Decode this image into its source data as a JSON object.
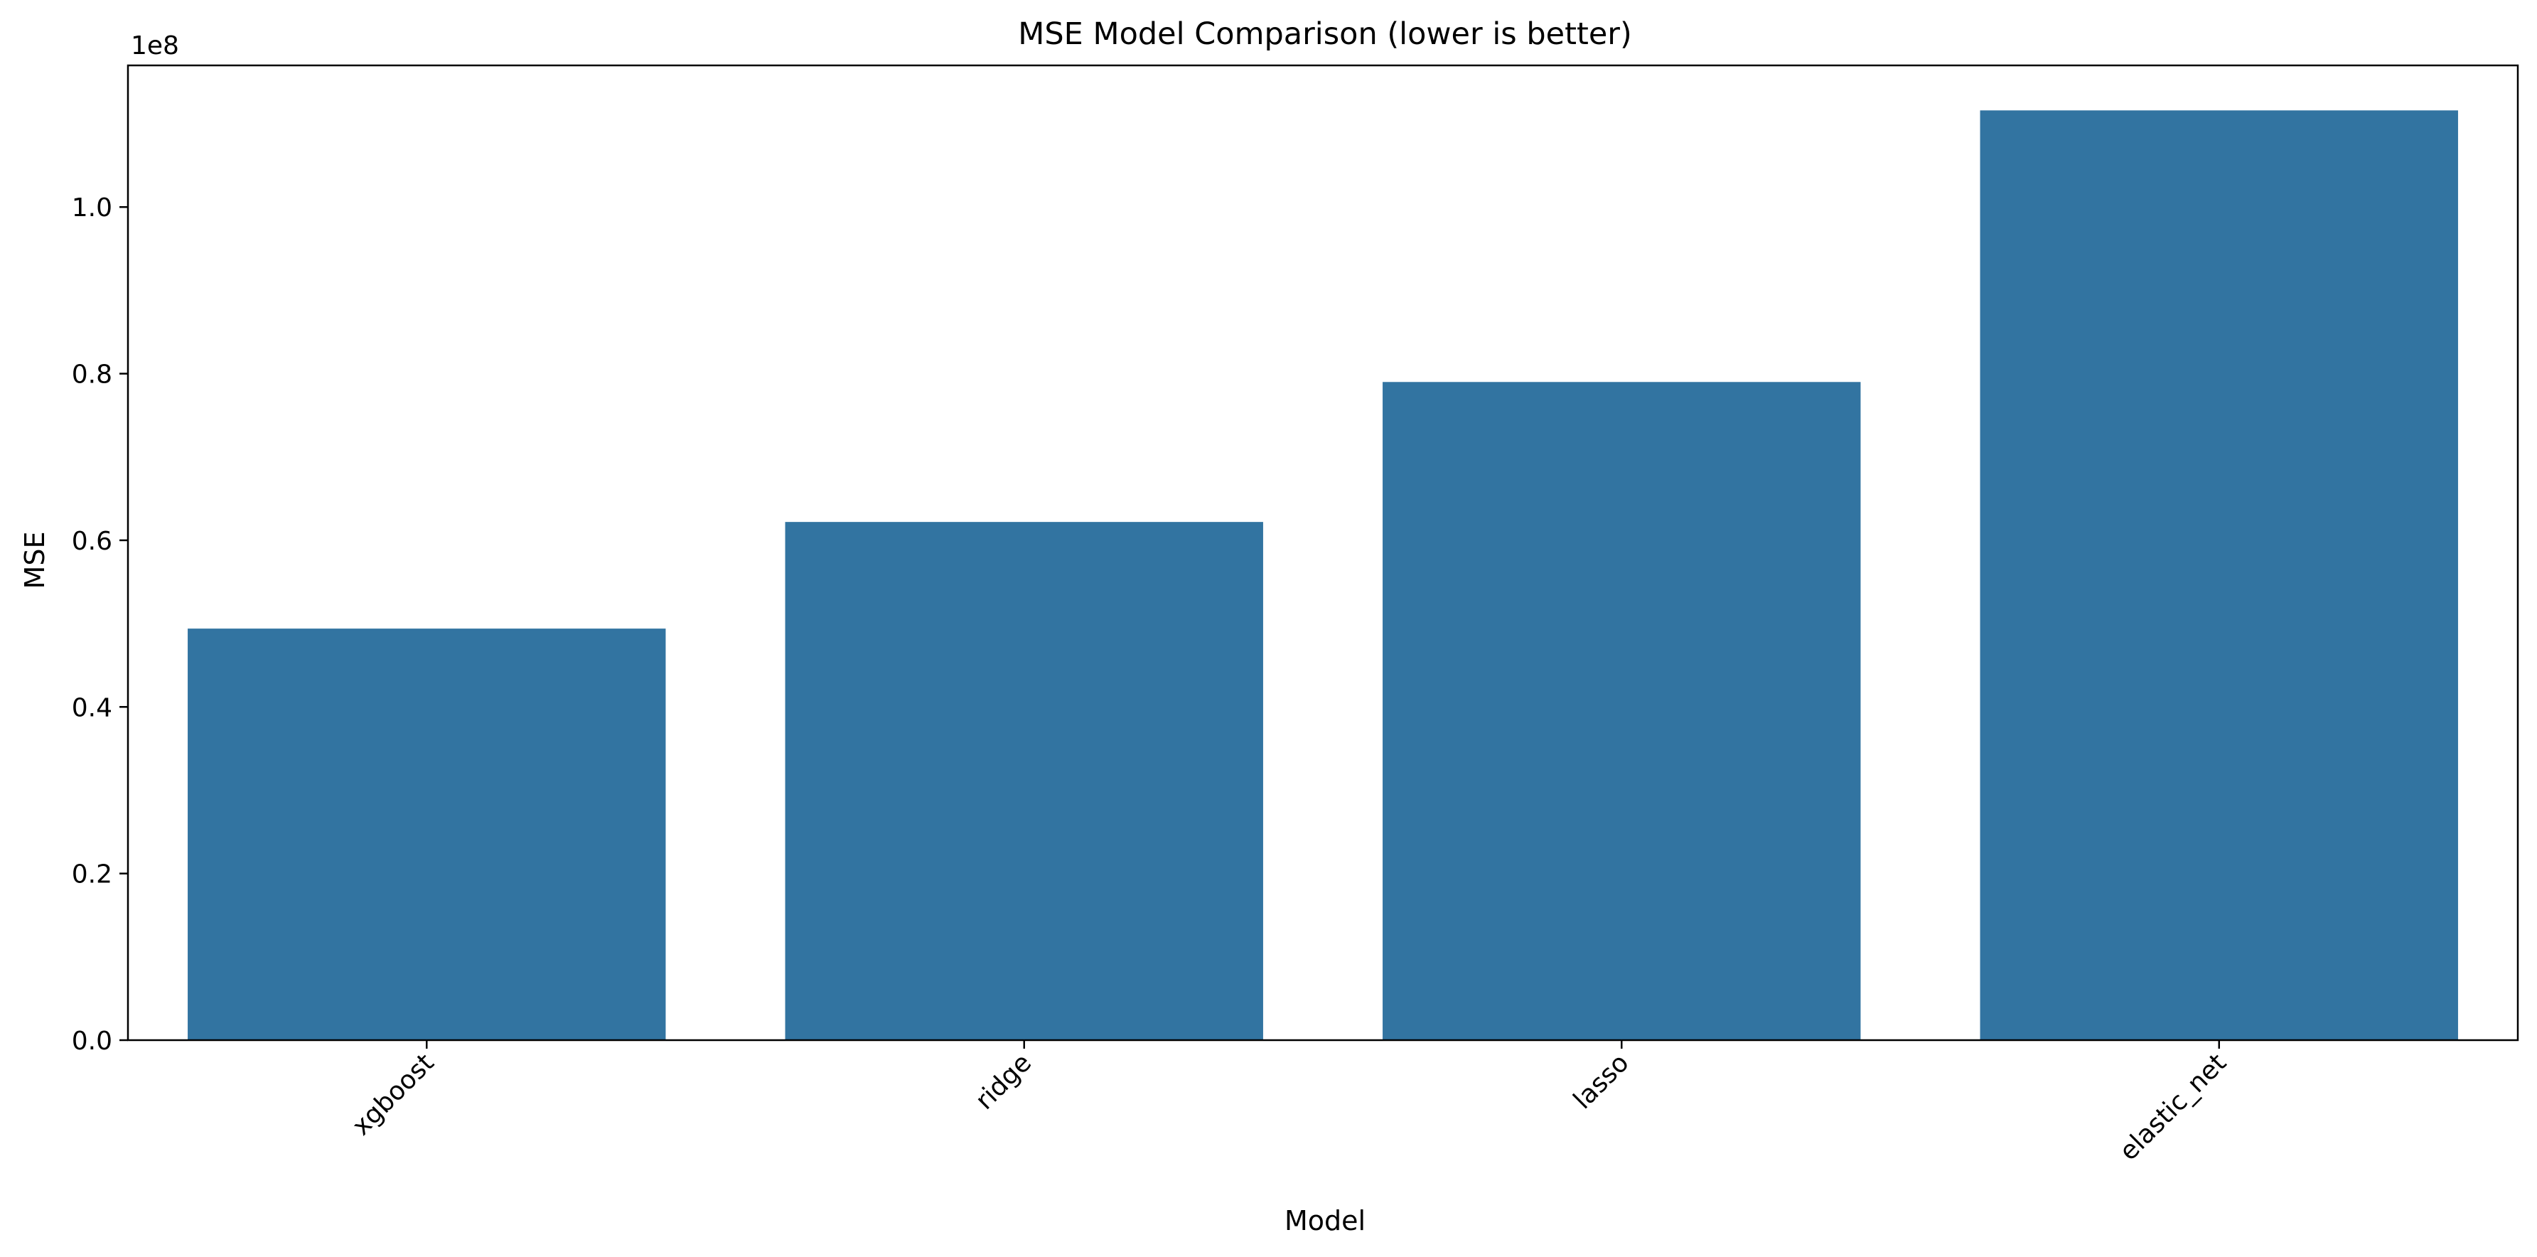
{
  "chart_data": {
    "type": "bar",
    "title": "MSE Model Comparison (lower is better)",
    "xlabel": "Model",
    "ylabel": "MSE",
    "y_offset_label": "1e8",
    "categories": [
      "xgboost",
      "ridge",
      "lasso",
      "elastic_net"
    ],
    "values": [
      49400000,
      62200000,
      79000000,
      111600000
    ],
    "ylim": [
      0,
      117000000
    ],
    "yticks": [
      0,
      20000000,
      40000000,
      60000000,
      80000000,
      100000000
    ],
    "ytick_labels": [
      "0.0",
      "0.2",
      "0.4",
      "0.6",
      "0.8",
      "1.0"
    ],
    "bar_color": "#3274a1",
    "grid": false,
    "x_tick_rotation": "45"
  }
}
